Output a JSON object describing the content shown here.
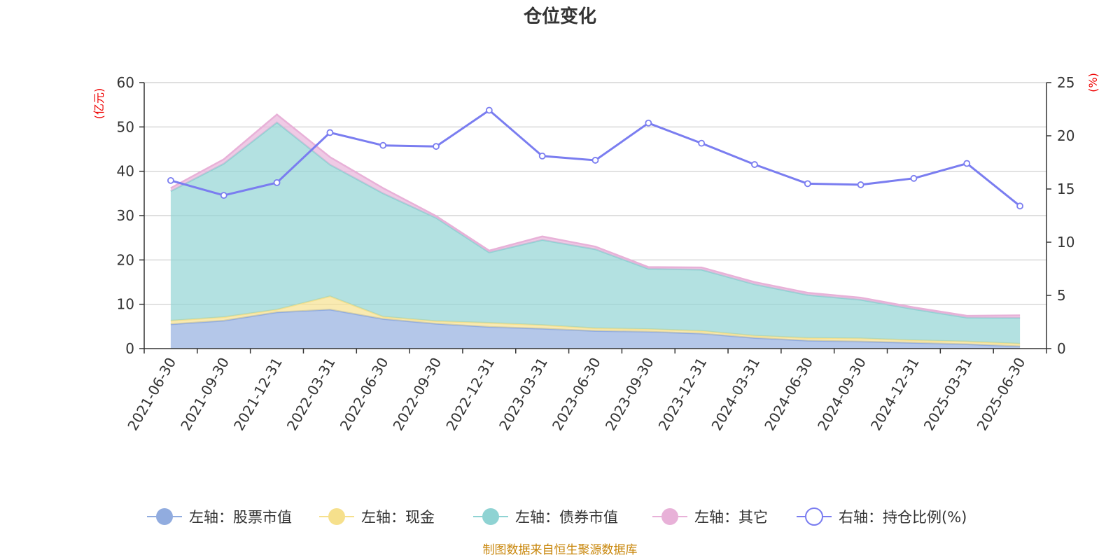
{
  "chart_data": {
    "type": "area",
    "title": "仓位变化",
    "source_note": "制图数据来自恒生聚源数据库",
    "categories": [
      "2021-06-30",
      "2021-09-30",
      "2021-12-31",
      "2022-03-31",
      "2022-06-30",
      "2022-09-30",
      "2022-12-31",
      "2023-03-31",
      "2023-06-30",
      "2023-09-30",
      "2023-12-31",
      "2024-03-31",
      "2024-06-30",
      "2024-09-30",
      "2024-12-31",
      "2025-03-31",
      "2025-06-30"
    ],
    "left_axis": {
      "unit_label": "(亿元)",
      "ylim": [
        0,
        60
      ],
      "ticks": [
        "0",
        "10",
        "20",
        "30",
        "40",
        "50",
        "60"
      ]
    },
    "right_axis": {
      "unit_label": "(%)",
      "ylim": [
        0,
        25
      ],
      "ticks": [
        "0",
        "5",
        "10",
        "15",
        "20",
        "25"
      ]
    },
    "stacked_series": [
      {
        "name": "左轴：股票市值",
        "color": "#91acdf",
        "values": [
          5.5,
          6.3,
          8.2,
          8.8,
          6.7,
          5.6,
          4.9,
          4.5,
          4.0,
          3.8,
          3.4,
          2.4,
          1.8,
          1.6,
          1.3,
          1.0,
          0.5
        ]
      },
      {
        "name": "左轴：现金",
        "color": "#f6e08c",
        "values": [
          0.8,
          0.8,
          0.6,
          3.0,
          0.5,
          0.6,
          0.9,
          0.8,
          0.6,
          0.6,
          0.6,
          0.5,
          0.6,
          0.7,
          0.6,
          0.6,
          0.6
        ]
      },
      {
        "name": "左轴：债券市值",
        "color": "#8fd3d3",
        "values": [
          29.2,
          34.6,
          42.2,
          29.7,
          27.8,
          23.3,
          15.9,
          19.2,
          17.8,
          13.6,
          13.8,
          11.6,
          9.7,
          8.7,
          7.0,
          5.4,
          5.8
        ]
      },
      {
        "name": "左轴：其它",
        "color": "#e8b1d8",
        "values": [
          0.7,
          1.0,
          1.8,
          1.7,
          1.2,
          0.4,
          0.4,
          0.8,
          0.6,
          0.4,
          0.5,
          0.5,
          0.5,
          0.5,
          0.4,
          0.4,
          0.6
        ]
      }
    ],
    "line_series": {
      "name": "右轴：持仓比例(%)",
      "color": "#7a7df0",
      "values": [
        15.8,
        14.4,
        15.6,
        20.3,
        19.1,
        19.0,
        22.4,
        18.1,
        17.7,
        21.2,
        19.3,
        17.3,
        15.5,
        15.4,
        16.0,
        17.4,
        13.4
      ]
    },
    "grid": true,
    "legend_position": "bottom"
  }
}
